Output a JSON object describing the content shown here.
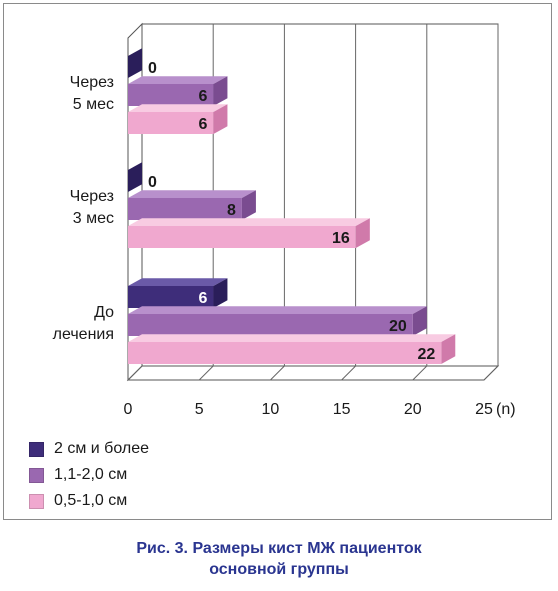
{
  "chart_data": {
    "type": "bar",
    "orientation": "horizontal",
    "style": "3d",
    "categories": [
      [
        "Через",
        "5 мес"
      ],
      [
        "Через",
        "3 мес"
      ],
      [
        "До",
        "лечения"
      ]
    ],
    "series": [
      {
        "name": "2 см и более",
        "values": [
          0,
          0,
          6
        ],
        "color": "#3e2d7a",
        "side": "#2a1e5a",
        "top": "#6a5aa8"
      },
      {
        "name": "1,1-2,0 см",
        "values": [
          6,
          8,
          20
        ],
        "color": "#9a68b0",
        "side": "#7a4c90",
        "top": "#b890cc"
      },
      {
        "name": "0,5-1,0 см",
        "values": [
          6,
          16,
          22
        ],
        "color": "#f0a8cf",
        "side": "#d07aaa",
        "top": "#f8cbe2"
      }
    ],
    "x_ticks": [
      "0",
      "5",
      "10",
      "15",
      "20",
      "25"
    ],
    "x_unit": "(n)",
    "xlim": [
      0,
      25
    ],
    "grid": true,
    "legend_position": "bottom-left"
  },
  "caption": {
    "line1": "Рис. 3. Размеры кист МЖ пациенток",
    "line2": "основной группы"
  }
}
